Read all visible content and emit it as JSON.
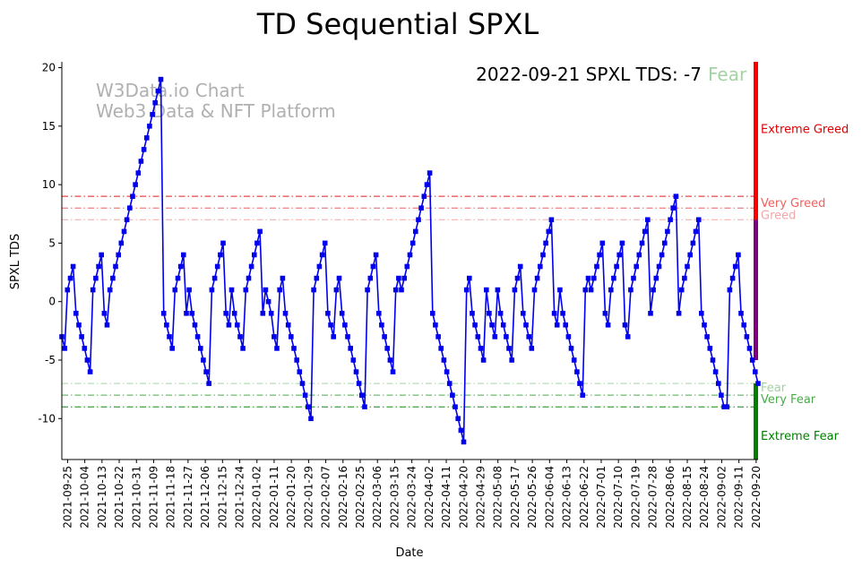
{
  "chart_data": {
    "type": "line",
    "title": "TD Sequential SPXL",
    "xlabel": "Date",
    "ylabel": "SPXL TDS",
    "ylim": [
      -13.5,
      20.5
    ],
    "yticks": [
      -10,
      -5,
      0,
      5,
      10,
      15,
      20
    ],
    "grid": false,
    "watermark": [
      "W3Data.io Chart",
      "Web3 Data & NFT Platform"
    ],
    "status": {
      "date": "2022-09-21",
      "text": "2022-09-21 SPXL TDS: -7",
      "label": "Fear",
      "label_color": "#a3d3a3"
    },
    "x_start": "2021-09-22",
    "x_end": "2022-09-21",
    "x_ticks": [
      "2021-09-25",
      "2021-10-04",
      "2021-10-13",
      "2021-10-22",
      "2021-10-31",
      "2021-11-09",
      "2021-11-18",
      "2021-11-27",
      "2021-12-06",
      "2021-12-15",
      "2021-12-24",
      "2022-01-02",
      "2022-01-11",
      "2022-01-20",
      "2022-01-29",
      "2022-02-07",
      "2022-02-16",
      "2022-02-25",
      "2022-03-06",
      "2022-03-15",
      "2022-03-24",
      "2022-04-02",
      "2022-04-11",
      "2022-04-20",
      "2022-04-29",
      "2022-05-08",
      "2022-05-17",
      "2022-05-26",
      "2022-06-04",
      "2022-06-13",
      "2022-06-22",
      "2022-07-01",
      "2022-07-10",
      "2022-07-19",
      "2022-07-28",
      "2022-08-06",
      "2022-08-15",
      "2022-08-24",
      "2022-09-02",
      "2022-09-11",
      "2022-09-20"
    ],
    "thresholds": [
      {
        "name": "Extreme Greed",
        "value": 9,
        "color": "#e41a1c",
        "show_label": false
      },
      {
        "name": "Very Greed",
        "value": 8,
        "color": "#f06060",
        "label": "Very Greed"
      },
      {
        "name": "Greed",
        "value": 7,
        "color": "#f4a6a6",
        "label": "Greed"
      },
      {
        "name": "Fear",
        "value": -7,
        "color": "#a3d3a3",
        "label": "Fear"
      },
      {
        "name": "Very Fear",
        "value": -8,
        "color": "#4aaa4a",
        "label": "Very Fear"
      },
      {
        "name": "Extreme Fear",
        "value": -9,
        "color": "#108a10",
        "show_label": false
      }
    ],
    "right_bar": [
      {
        "label": "Extreme Greed",
        "from": 7,
        "to": 20.5,
        "color": "#ff0000",
        "label_value": 14.7,
        "label_color": "#e00000"
      },
      {
        "label": "",
        "from": -5,
        "to": 7,
        "color": "#800080"
      },
      {
        "label": "Extreme Fear",
        "from": -13.5,
        "to": -7,
        "color": "#008000",
        "label_value": -11.5,
        "label_color": "#008000"
      }
    ],
    "series": [
      {
        "name": "SPXL TDS",
        "color": "#0000ee",
        "values": [
          -3,
          -4,
          1,
          2,
          3,
          -1,
          -2,
          -3,
          -4,
          -5,
          -6,
          1,
          2,
          3,
          4,
          -1,
          -2,
          1,
          2,
          3,
          4,
          5,
          6,
          7,
          8,
          9,
          10,
          11,
          12,
          13,
          14,
          15,
          16,
          17,
          18,
          19,
          -1,
          -2,
          -3,
          -4,
          1,
          2,
          3,
          4,
          -1,
          1,
          -1,
          -2,
          -3,
          -4,
          -5,
          -6,
          -7,
          1,
          2,
          3,
          4,
          5,
          -1,
          -2,
          1,
          -1,
          -2,
          -3,
          -4,
          1,
          2,
          3,
          4,
          5,
          6,
          -1,
          1,
          0,
          -1,
          -3,
          -4,
          1,
          2,
          -1,
          -2,
          -3,
          -4,
          -5,
          -6,
          -7,
          -8,
          -9,
          -10,
          1,
          2,
          3,
          4,
          5,
          -1,
          -2,
          -3,
          1,
          2,
          -1,
          -2,
          -3,
          -4,
          -5,
          -6,
          -7,
          -8,
          -9,
          1,
          2,
          3,
          4,
          -1,
          -2,
          -3,
          -4,
          -5,
          -6,
          1,
          2,
          1,
          2,
          3,
          4,
          5,
          6,
          7,
          8,
          9,
          10,
          11,
          -1,
          -2,
          -3,
          -4,
          -5,
          -6,
          -7,
          -8,
          -9,
          -10,
          -11,
          -12,
          1,
          2,
          -1,
          -2,
          -3,
          -4,
          -5,
          1,
          -1,
          -2,
          -3,
          1,
          -1,
          -2,
          -3,
          -4,
          -5,
          1,
          2,
          3,
          -1,
          -2,
          -3,
          -4,
          1,
          2,
          3,
          4,
          5,
          6,
          7,
          -1,
          -2,
          1,
          -1,
          -2,
          -3,
          -4,
          -5,
          -6,
          -7,
          -8,
          1,
          2,
          1,
          2,
          3,
          4,
          5,
          -1,
          -2,
          1,
          2,
          3,
          4,
          5,
          -2,
          -3,
          1,
          2,
          3,
          4,
          5,
          6,
          7,
          -1,
          1,
          2,
          3,
          4,
          5,
          6,
          7,
          8,
          9,
          -1,
          1,
          2,
          3,
          4,
          5,
          6,
          7,
          -1,
          -2,
          -3,
          -4,
          -5,
          -6,
          -7,
          -8,
          -9,
          -9,
          1,
          2,
          3,
          4,
          -1,
          -2,
          -3,
          -4,
          -5,
          -6,
          -7
        ]
      }
    ]
  }
}
